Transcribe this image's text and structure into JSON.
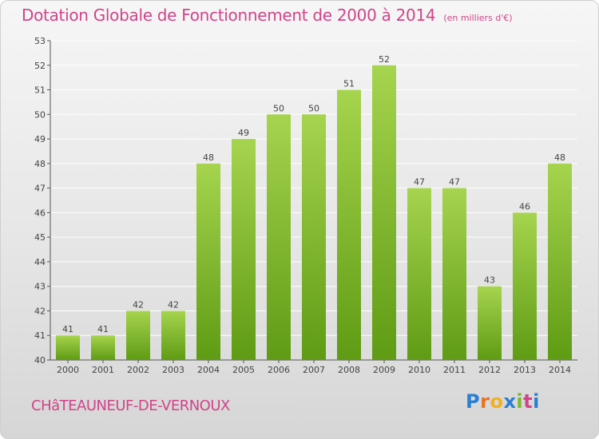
{
  "header": {
    "title": "Dotation Globale de Fonctionnement de 2000 à 2014",
    "unit": "(en milliers d'€)"
  },
  "footer": {
    "commune": "CHâTEAUNEUF-DE-VERNOUX",
    "logo_letters": [
      "P",
      "r",
      "o",
      "x",
      "i",
      "t",
      "i"
    ]
  },
  "colors": {
    "title": "#d0448a",
    "bar_top": "#a6d44e",
    "bar_bottom": "#5f9b14"
  },
  "chart_data": {
    "type": "bar",
    "title": "Dotation Globale de Fonctionnement de 2000 à 2014",
    "subtitle": "(en milliers d'€)",
    "xlabel": "",
    "ylabel": "",
    "categories": [
      "2000",
      "2001",
      "2002",
      "2003",
      "2004",
      "2005",
      "2006",
      "2007",
      "2008",
      "2009",
      "2010",
      "2011",
      "2012",
      "2013",
      "2014"
    ],
    "values": [
      41,
      41,
      42,
      42,
      48,
      49,
      50,
      50,
      51,
      52,
      47,
      47,
      43,
      46,
      48
    ],
    "ylim": [
      40,
      53
    ],
    "yticks": [
      40,
      41,
      42,
      43,
      44,
      45,
      46,
      47,
      48,
      49,
      50,
      51,
      52,
      53
    ],
    "grid": "horizontal",
    "legend": "none"
  }
}
